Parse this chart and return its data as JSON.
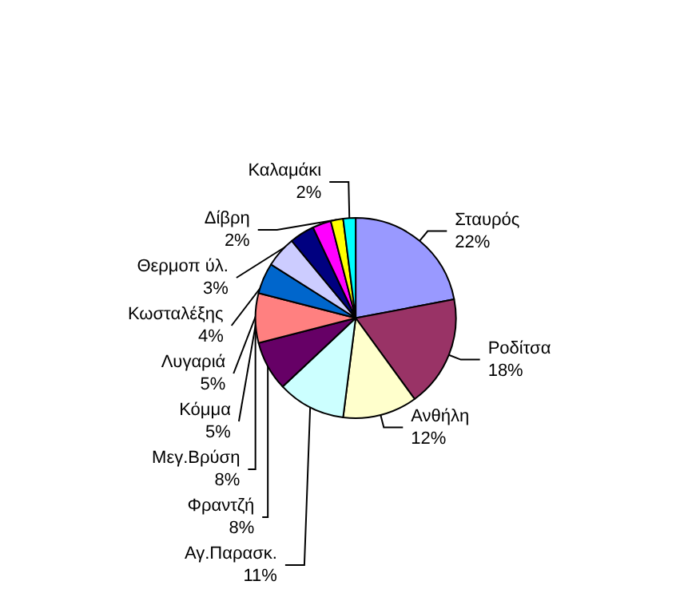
{
  "chart_data": {
    "type": "pie",
    "categories": [
      "Σταυρός",
      "Ροδίτσα",
      "Ανθήλη",
      "Αγ.Παρασκ.",
      "Φραντζή",
      "Μεγ.Βρύση",
      "Κόμμα",
      "Λυγαριά",
      "Κωσταλέξης",
      "Θερμοπ ύλ.",
      "Δίβρη",
      "Καλαμάκι"
    ],
    "values": [
      22,
      18,
      12,
      11,
      8,
      8,
      5,
      5,
      4,
      3,
      2,
      2
    ],
    "value_labels": [
      "22%",
      "18%",
      "12%",
      "11%",
      "8%",
      "8%",
      "5%",
      "5%",
      "4%",
      "3%",
      "2%",
      "2%"
    ],
    "colors": [
      "#9999ff",
      "#993366",
      "#ffffcc",
      "#ccffff",
      "#660066",
      "#ff8080",
      "#0066cc",
      "#ccccff",
      "#000080",
      "#ff00ff",
      "#ffff00",
      "#00ffff"
    ],
    "legend": false
  }
}
